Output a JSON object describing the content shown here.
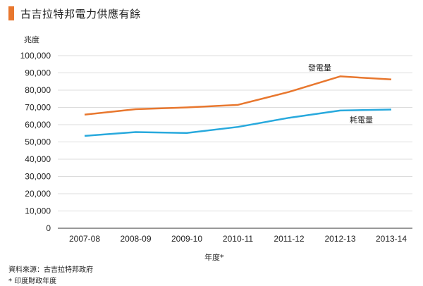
{
  "title": "古吉拉特邦電力供應有餘",
  "source_note": "資料來源：古吉拉特邦政府",
  "footnote": "* 印度財政年度",
  "colors": {
    "accent": "#e8772e",
    "generation": "#e8772e",
    "consumption": "#28a9dd",
    "grid": "#d0d0d0"
  },
  "chart_data": {
    "type": "line",
    "ylabel": "兆度",
    "xlabel": "年度*",
    "ylim": [
      0,
      100000
    ],
    "yticks": [
      "0",
      "10,000",
      "20,000",
      "30,000",
      "40,000",
      "50,000",
      "60,000",
      "70,000",
      "80,000",
      "90,000",
      "100,000"
    ],
    "categories": [
      "2007-08",
      "2008-09",
      "2009-10",
      "2010-11",
      "2011-12",
      "2012-13",
      "2013-14"
    ],
    "series": [
      {
        "name": "發電量",
        "color": "#e8772e",
        "values": [
          65800,
          69000,
          70000,
          71500,
          79000,
          88000,
          86200
        ]
      },
      {
        "name": "耗電量",
        "color": "#28a9dd",
        "values": [
          53500,
          55700,
          55200,
          58700,
          64000,
          68200,
          68800
        ]
      }
    ],
    "grid": true
  }
}
